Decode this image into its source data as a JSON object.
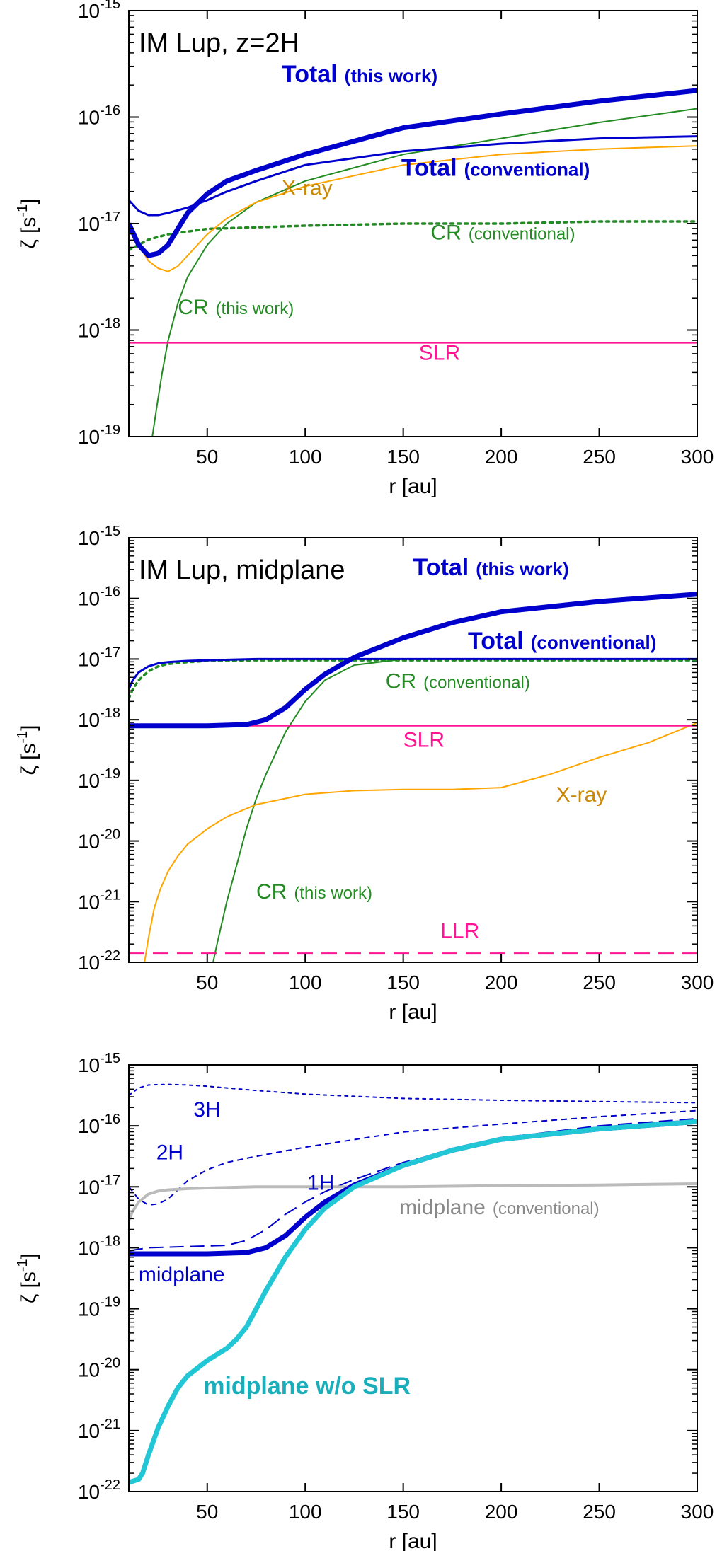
{
  "chart_data": [
    {
      "type": "line",
      "title": "IM Lup, z=2H",
      "xlabel": "r [au]",
      "ylabel": "ζ [s",
      "ylabel_sup": "-1",
      "ylabel_end": "]",
      "xlim": [
        10,
        300
      ],
      "ylim_log10": [
        -19,
        -15
      ],
      "x_ticks": [
        50,
        100,
        150,
        200,
        250,
        300
      ],
      "x_tick_labels": [
        "50",
        "100",
        "150",
        "200",
        "250",
        "300"
      ],
      "y_ticks_log10": [
        -19,
        -18,
        -17,
        -16,
        -15
      ],
      "y_tick_bases": [
        "10",
        "10",
        "10",
        "10",
        "10"
      ],
      "y_tick_exponents": [
        "-19",
        "-18",
        "-17",
        "-16",
        "-15"
      ],
      "series": [
        {
          "name": "CR (this work)",
          "color": "#228b22",
          "style": "solid",
          "width": 2,
          "x": [
            22,
            24,
            27,
            30,
            35,
            40,
            50,
            60,
            75,
            100,
            150,
            200,
            250,
            300
          ],
          "log10_y": [
            -19.0,
            -18.75,
            -18.4,
            -18.1,
            -17.75,
            -17.5,
            -17.2,
            -17.0,
            -16.8,
            -16.6,
            -16.35,
            -16.2,
            -16.05,
            -15.92
          ]
        },
        {
          "name": "CR (conventional)",
          "color": "#228b22",
          "style": "dotted",
          "width": 3.5,
          "x": [
            10,
            15,
            20,
            30,
            50,
            100,
            150,
            200,
            250,
            300
          ],
          "log10_y": [
            -17.25,
            -17.2,
            -17.15,
            -17.1,
            -17.05,
            -17.02,
            -17.0,
            -17.0,
            -16.98,
            -16.98
          ]
        },
        {
          "name": "X-ray",
          "color": "#ffa500",
          "style": "solid",
          "width": 2,
          "x": [
            10,
            15,
            20,
            25,
            30,
            35,
            40,
            50,
            60,
            75,
            100,
            150,
            200,
            250,
            300
          ],
          "log10_y": [
            -17.0,
            -17.2,
            -17.35,
            -17.42,
            -17.45,
            -17.4,
            -17.3,
            -17.1,
            -16.95,
            -16.8,
            -16.65,
            -16.45,
            -16.35,
            -16.3,
            -16.27
          ]
        },
        {
          "name": "SLR",
          "color": "#ff1493",
          "style": "solid",
          "width": 2,
          "x": [
            10,
            300
          ],
          "log10_y": [
            -18.12,
            -18.12
          ]
        },
        {
          "name": "Total (conventional)",
          "color": "#0000cd",
          "style": "solid",
          "width": 3,
          "x": [
            10,
            15,
            20,
            25,
            30,
            40,
            50,
            60,
            75,
            100,
            150,
            200,
            250,
            300
          ],
          "log10_y": [
            -16.78,
            -16.88,
            -16.92,
            -16.92,
            -16.9,
            -16.85,
            -16.78,
            -16.7,
            -16.6,
            -16.45,
            -16.32,
            -16.25,
            -16.2,
            -16.18
          ]
        },
        {
          "name": "Total (this work)",
          "color": "#0000cd",
          "style": "solid",
          "width": 7,
          "x": [
            10,
            15,
            20,
            25,
            30,
            35,
            40,
            50,
            60,
            75,
            100,
            150,
            200,
            250,
            300
          ],
          "log10_y": [
            -17.0,
            -17.2,
            -17.3,
            -17.28,
            -17.2,
            -17.05,
            -16.9,
            -16.72,
            -16.6,
            -16.5,
            -16.35,
            -16.1,
            -15.97,
            -15.85,
            -15.75
          ]
        }
      ],
      "annotations": [
        {
          "text": "Total",
          "sub": "(this work)",
          "color": "#0000cd",
          "bold": true,
          "x": 88,
          "log10_y": -15.67
        },
        {
          "text": "Total",
          "sub": "(conventional)",
          "color": "#0000cd",
          "bold": true,
          "x": 149,
          "log10_y": -16.55
        },
        {
          "text": "X-ray",
          "color": "#cc8800",
          "x": 88,
          "log10_y": -16.73
        },
        {
          "text": "CR",
          "sub": "(conventional)",
          "color": "#228b22",
          "x": 164,
          "log10_y": -17.15
        },
        {
          "text": "CR",
          "sub": "(this work)",
          "color": "#228b22",
          "x": 35,
          "log10_y": -17.85
        },
        {
          "text": "SLR",
          "color": "#ff1493",
          "x": 158,
          "log10_y": -18.28
        }
      ]
    },
    {
      "type": "line",
      "title": "IM Lup, midplane",
      "xlabel": "r [au]",
      "ylabel": "ζ [s",
      "ylabel_sup": "-1",
      "ylabel_end": "]",
      "xlim": [
        10,
        300
      ],
      "ylim_log10": [
        -22,
        -15
      ],
      "x_ticks": [
        50,
        100,
        150,
        200,
        250,
        300
      ],
      "x_tick_labels": [
        "50",
        "100",
        "150",
        "200",
        "250",
        "300"
      ],
      "y_ticks_log10": [
        -22,
        -21,
        -20,
        -19,
        -18,
        -17,
        -16,
        -15
      ],
      "y_tick_bases": [
        "10",
        "10",
        "10",
        "10",
        "10",
        "10",
        "10",
        "10"
      ],
      "y_tick_exponents": [
        "-22",
        "-21",
        "-20",
        "-19",
        "-18",
        "-17",
        "-16",
        "-15"
      ],
      "series": [
        {
          "name": "CR (this work)",
          "color": "#228b22",
          "style": "solid",
          "width": 2,
          "x": [
            53,
            55,
            60,
            65,
            70,
            75,
            80,
            90,
            100,
            110,
            125,
            150,
            200,
            250,
            300
          ],
          "log10_y": [
            -22.0,
            -21.7,
            -21.0,
            -20.4,
            -19.8,
            -19.3,
            -18.9,
            -18.2,
            -17.7,
            -17.35,
            -17.1,
            -17.0,
            -17.0,
            -17.0,
            -17.0
          ]
        },
        {
          "name": "CR (conventional)",
          "color": "#228b22",
          "style": "dotted",
          "width": 3.5,
          "x": [
            10,
            12,
            15,
            20,
            25,
            30,
            40,
            50,
            75,
            100,
            150,
            200,
            250,
            300
          ],
          "log10_y": [
            -17.65,
            -17.5,
            -17.35,
            -17.2,
            -17.12,
            -17.08,
            -17.05,
            -17.03,
            -17.02,
            -17.02,
            -17.02,
            -17.02,
            -17.02,
            -17.02
          ]
        },
        {
          "name": "X-ray",
          "color": "#ffa500",
          "style": "solid",
          "width": 2,
          "x": [
            18,
            20,
            23,
            26,
            30,
            35,
            40,
            50,
            60,
            75,
            100,
            125,
            150,
            175,
            200,
            225,
            250,
            275,
            300
          ],
          "log10_y": [
            -22.0,
            -21.6,
            -21.1,
            -20.8,
            -20.5,
            -20.25,
            -20.05,
            -19.8,
            -19.6,
            -19.4,
            -19.23,
            -19.17,
            -19.15,
            -19.15,
            -19.12,
            -18.9,
            -18.62,
            -18.38,
            -18.05
          ]
        },
        {
          "name": "SLR",
          "color": "#ff1493",
          "style": "solid",
          "width": 2,
          "x": [
            10,
            300
          ],
          "log10_y": [
            -18.1,
            -18.1
          ]
        },
        {
          "name": "LLR",
          "color": "#ff1493",
          "style": "dashed",
          "width": 2,
          "x": [
            10,
            300
          ],
          "log10_y": [
            -21.85,
            -21.85
          ]
        },
        {
          "name": "Total (conventional)",
          "color": "#0000cd",
          "style": "solid",
          "width": 3,
          "x": [
            10,
            12,
            15,
            20,
            25,
            30,
            40,
            50,
            75,
            100,
            150,
            200,
            250,
            300
          ],
          "log10_y": [
            -17.5,
            -17.35,
            -17.22,
            -17.12,
            -17.07,
            -17.05,
            -17.03,
            -17.02,
            -17.0,
            -17.0,
            -17.0,
            -17.0,
            -17.0,
            -17.0
          ]
        },
        {
          "name": "Total (this work)",
          "color": "#0000cd",
          "style": "solid",
          "width": 7,
          "x": [
            10,
            30,
            50,
            70,
            80,
            90,
            100,
            110,
            125,
            150,
            175,
            200,
            250,
            300
          ],
          "log10_y": [
            -18.1,
            -18.1,
            -18.1,
            -18.08,
            -18.0,
            -17.8,
            -17.5,
            -17.25,
            -16.97,
            -16.65,
            -16.4,
            -16.22,
            -16.05,
            -15.93
          ]
        }
      ],
      "annotations": [
        {
          "text": "Total",
          "sub": "(this work)",
          "color": "#0000cd",
          "bold": true,
          "x": 155,
          "log10_y": -15.62
        },
        {
          "text": "Total",
          "sub": "(conventional)",
          "color": "#0000cd",
          "bold": true,
          "x": 183,
          "log10_y": -16.83
        },
        {
          "text": "CR",
          "sub": "(conventional)",
          "color": "#228b22",
          "x": 141,
          "log10_y": -17.48
        },
        {
          "text": "SLR",
          "color": "#ff1493",
          "x": 150,
          "log10_y": -18.45
        },
        {
          "text": "X-ray",
          "color": "#cc8800",
          "x": 228,
          "log10_y": -19.35
        },
        {
          "text": "CR",
          "sub": "(this work)",
          "color": "#228b22",
          "x": 75,
          "log10_y": -20.95
        },
        {
          "text": "LLR",
          "color": "#ff1493",
          "x": 169,
          "log10_y": -21.6
        }
      ]
    },
    {
      "type": "line",
      "title": "",
      "xlabel": "r [au]",
      "ylabel": "ζ [s",
      "ylabel_sup": "-1",
      "ylabel_end": "]",
      "xlim": [
        10,
        300
      ],
      "ylim_log10": [
        -22,
        -15
      ],
      "x_ticks": [
        50,
        100,
        150,
        200,
        250,
        300
      ],
      "x_tick_labels": [
        "50",
        "100",
        "150",
        "200",
        "250",
        "300"
      ],
      "y_ticks_log10": [
        -22,
        -21,
        -20,
        -19,
        -18,
        -17,
        -16,
        -15
      ],
      "y_tick_bases": [
        "10",
        "10",
        "10",
        "10",
        "10",
        "10",
        "10",
        "10"
      ],
      "y_tick_exponents": [
        "-22",
        "-21",
        "-20",
        "-19",
        "-18",
        "-17",
        "-16",
        "-15"
      ],
      "series": [
        {
          "name": "3H",
          "color": "#0000cd",
          "style": "dotted",
          "width": 2,
          "x": [
            10,
            15,
            20,
            30,
            40,
            50,
            75,
            100,
            150,
            200,
            250,
            300
          ],
          "log10_y": [
            -15.5,
            -15.38,
            -15.33,
            -15.32,
            -15.33,
            -15.35,
            -15.42,
            -15.48,
            -15.55,
            -15.58,
            -15.6,
            -15.62
          ]
        },
        {
          "name": "2H",
          "color": "#0000cd",
          "style": "dashed-short",
          "width": 2,
          "x": [
            10,
            15,
            20,
            25,
            30,
            35,
            40,
            50,
            60,
            75,
            100,
            150,
            200,
            250,
            300
          ],
          "log10_y": [
            -17.0,
            -17.2,
            -17.3,
            -17.28,
            -17.2,
            -17.05,
            -16.9,
            -16.72,
            -16.6,
            -16.5,
            -16.35,
            -16.1,
            -15.97,
            -15.85,
            -15.75
          ]
        },
        {
          "name": "1H",
          "color": "#0000cd",
          "style": "dashed-long",
          "width": 2,
          "x": [
            10,
            20,
            40,
            60,
            70,
            80,
            90,
            100,
            110,
            125,
            150,
            200,
            250,
            300
          ],
          "log10_y": [
            -18.05,
            -18.0,
            -17.98,
            -17.96,
            -17.88,
            -17.7,
            -17.45,
            -17.25,
            -17.08,
            -16.88,
            -16.6,
            -16.2,
            -16.0,
            -15.88
          ]
        },
        {
          "name": "midplane (conventional)",
          "color": "#bbbbbb",
          "style": "solid",
          "width": 4,
          "x": [
            10,
            12,
            15,
            20,
            25,
            30,
            40,
            50,
            75,
            100,
            150,
            200,
            250,
            300
          ],
          "log10_y": [
            -17.55,
            -17.4,
            -17.25,
            -17.12,
            -17.07,
            -17.05,
            -17.03,
            -17.02,
            -17.0,
            -17.0,
            -17.0,
            -16.98,
            -16.97,
            -16.95
          ]
        },
        {
          "name": "midplane",
          "color": "#0000cd",
          "style": "solid",
          "width": 7,
          "x": [
            10,
            30,
            50,
            70,
            80,
            90,
            100,
            110,
            125,
            150,
            175,
            200,
            250,
            300
          ],
          "log10_y": [
            -18.1,
            -18.1,
            -18.1,
            -18.08,
            -18.0,
            -17.8,
            -17.5,
            -17.25,
            -16.97,
            -16.65,
            -16.4,
            -16.22,
            -16.05,
            -15.93
          ]
        },
        {
          "name": "midplane w/o SLR",
          "color": "#22c7d6",
          "style": "solid",
          "width": 7,
          "x": [
            10,
            15,
            17,
            20,
            25,
            30,
            35,
            40,
            50,
            60,
            65,
            70,
            75,
            80,
            90,
            100,
            110,
            125,
            150,
            175,
            200,
            250,
            300
          ],
          "log10_y": [
            -21.85,
            -21.8,
            -21.7,
            -21.4,
            -20.95,
            -20.6,
            -20.3,
            -20.1,
            -19.85,
            -19.65,
            -19.5,
            -19.3,
            -19.0,
            -18.7,
            -18.15,
            -17.7,
            -17.35,
            -17.0,
            -16.65,
            -16.4,
            -16.22,
            -16.05,
            -15.93
          ]
        }
      ],
      "annotations": [
        {
          "text": "3H",
          "color": "#0000cd",
          "x": 43,
          "log10_y": -15.85
        },
        {
          "text": "2H",
          "color": "#0000cd",
          "x": 24,
          "log10_y": -16.55
        },
        {
          "text": "1H",
          "color": "#0000cd",
          "x": 101,
          "log10_y": -17.05
        },
        {
          "text": "midplane",
          "sub": "(conventional)",
          "color": "#888888",
          "gray": true,
          "x": 148,
          "log10_y": -17.45
        },
        {
          "text": "midplane",
          "color": "#0000cd",
          "x": 15,
          "log10_y": -18.55
        },
        {
          "text": "midplane w/o SLR",
          "color": "#1aaebb",
          "bold": true,
          "x": 48,
          "log10_y": -20.4
        }
      ]
    }
  ]
}
